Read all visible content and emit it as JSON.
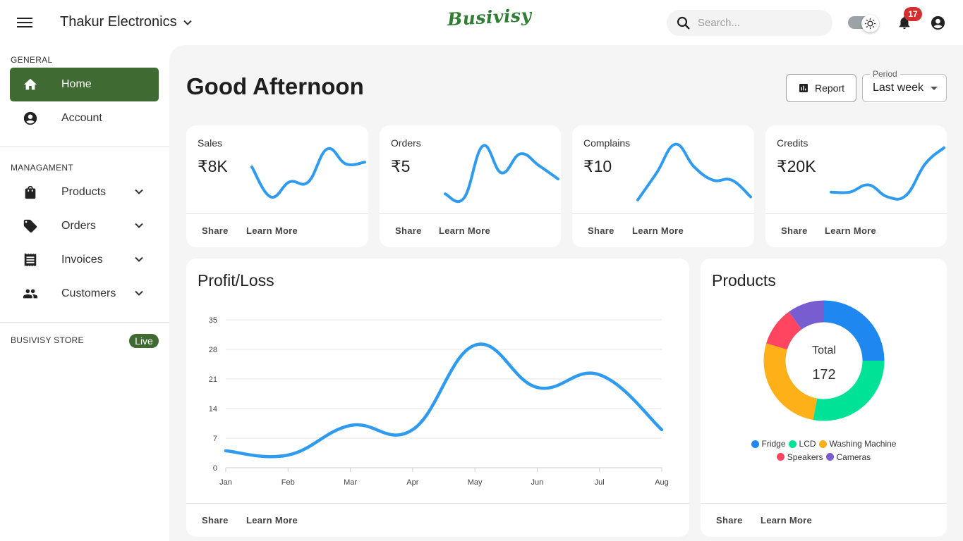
{
  "header": {
    "company": "Thakur Electronics",
    "brand": "Busivisy",
    "search_placeholder": "Search...",
    "notification_count": "17"
  },
  "sidebar": {
    "general_title": "GENERAL",
    "home": "Home",
    "account": "Account",
    "management_title": "MANAGAMENT",
    "products": "Products",
    "orders": "Orders",
    "invoices": "Invoices",
    "customers": "Customers",
    "store_title": "BUSIVISY STORE",
    "store_status": "Live"
  },
  "main": {
    "greeting": "Good Afternoon",
    "report_label": "Report",
    "period_label": "Period",
    "period_value": "Last week"
  },
  "stats": [
    {
      "label": "Sales",
      "value": "₹8K",
      "share": "Share",
      "learn": "Learn More"
    },
    {
      "label": "Orders",
      "value": "₹5",
      "share": "Share",
      "learn": "Learn More"
    },
    {
      "label": "Complains",
      "value": "₹10",
      "share": "Share",
      "learn": "Learn More"
    },
    {
      "label": "Credits",
      "value": "₹20K",
      "share": "Share",
      "learn": "Learn More"
    }
  ],
  "profit_card": {
    "title": "Profit/Loss",
    "share": "Share",
    "learn": "Learn More"
  },
  "products_card": {
    "title": "Products",
    "total_label": "Total",
    "total_value": "172",
    "share": "Share",
    "learn": "Learn More"
  },
  "colors": {
    "accent": "#3f6a31",
    "line": "#2f9bef"
  },
  "chart_data": [
    {
      "type": "line",
      "title": "Profit/Loss",
      "categories": [
        "Jan",
        "Feb",
        "Mar",
        "Apr",
        "May",
        "Jun",
        "Jul",
        "Aug"
      ],
      "values": [
        4,
        3,
        10,
        9,
        29,
        19,
        22,
        9
      ],
      "ylim": [
        0,
        35
      ],
      "yticks": [
        0,
        7,
        14,
        21,
        28,
        35
      ],
      "grid": true
    },
    {
      "type": "pie",
      "title": "Products",
      "labels": [
        "Fridge",
        "LCD",
        "Washing Machine",
        "Speakers",
        "Cameras"
      ],
      "values": [
        43,
        48,
        46,
        18,
        17
      ],
      "colors": [
        "#1e88f0",
        "#00e396",
        "#feb019",
        "#ff4560",
        "#775dd0"
      ],
      "legend": "bottom"
    },
    {
      "type": "line",
      "title": "Sales",
      "values": [
        6,
        1,
        3.5,
        3.5,
        9,
        6.5,
        6.8
      ]
    },
    {
      "type": "line",
      "title": "Orders",
      "values": [
        1.5,
        0.8,
        9.5,
        5,
        8.2,
        6.2,
        4
      ]
    },
    {
      "type": "line",
      "title": "Complains",
      "values": [
        0.5,
        5,
        9.8,
        6,
        3.8,
        3.8,
        1
      ]
    },
    {
      "type": "line",
      "title": "Credits",
      "values": [
        1.8,
        1.8,
        3,
        1,
        1.3,
        6.5,
        9.2
      ]
    }
  ]
}
